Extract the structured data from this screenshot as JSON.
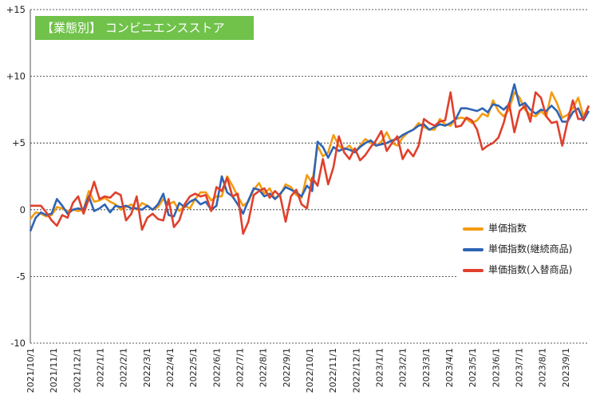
{
  "chart_data": {
    "type": "line",
    "title": "【業態別】 コンビニエンスストア",
    "xlabel": "",
    "ylabel": "",
    "ylim": [
      -10,
      15
    ],
    "yticks": [
      15,
      10,
      5,
      0,
      -5,
      -10
    ],
    "ytick_labels": [
      "+15",
      "+10",
      "+5",
      "0",
      "-5",
      "-10"
    ],
    "xtick_labels": [
      "2021/10/1",
      "2021/11/1",
      "2021/12/1",
      "2022/1/1",
      "2022/2/1",
      "2022/3/1",
      "2022/4/1",
      "2022/5/1",
      "2022/6/1",
      "2022/7/1",
      "2022/8/1",
      "2022/9/1",
      "2022/10/1",
      "2022/11/1",
      "2022/12/1",
      "2023/1/1",
      "2023/2/1",
      "2023/3/1",
      "2023/4/1",
      "2023/5/1",
      "2023/6/1",
      "2023/7/1",
      "2023/8/1",
      "2023/9/1"
    ],
    "grid": "horizontal",
    "legend_position": "right",
    "series": [
      {
        "name": "単価指数",
        "color": "#f39c12",
        "values": [
          -0.7,
          -0.2,
          -0.3,
          -0.5,
          -0.4,
          0.2,
          0.1,
          -0.1,
          0.0,
          -0.1,
          0.0,
          1.4,
          0.6,
          0.7,
          0.9,
          0.6,
          0.4,
          0.0,
          0.2,
          0.4,
          0.0,
          0.5,
          0.3,
          0.0,
          0.2,
          0.8,
          0.4,
          0.6,
          -0.1,
          0.3,
          0.1,
          0.8,
          1.3,
          1.3,
          0.7,
          1.0,
          1.0,
          2.5,
          1.8,
          1.0,
          0.3,
          0.6,
          1.5,
          2.0,
          1.2,
          1.6,
          0.8,
          1.1,
          1.9,
          1.7,
          1.1,
          0.9,
          2.6,
          2.0,
          4.8,
          4.0,
          4.3,
          5.6,
          4.8,
          4.5,
          4.8,
          4.3,
          4.8,
          5.3,
          5.0,
          4.8,
          5.1,
          5.8,
          5.0,
          4.8,
          5.4,
          5.8,
          6.0,
          6.5,
          6.2,
          6.0,
          6.0,
          6.8,
          6.4,
          6.3,
          6.8,
          6.9,
          6.8,
          6.5,
          6.7,
          7.2,
          7.0,
          8.2,
          7.4,
          7.0,
          7.5,
          8.8,
          8.4,
          7.5,
          7.1,
          7.0,
          7.4,
          7.0,
          8.8,
          8.0,
          6.9,
          7.1,
          7.6,
          8.4,
          7.0,
          7.8
        ]
      },
      {
        "name": "単価指数(継続商品)",
        "color": "#2e64b4",
        "values": [
          -1.6,
          -0.6,
          -0.2,
          -0.4,
          -0.3,
          0.8,
          0.3,
          -0.3,
          0.0,
          0.1,
          0.0,
          1.0,
          -0.1,
          0.1,
          0.4,
          -0.2,
          0.3,
          0.2,
          0.3,
          0.1,
          0.1,
          0.0,
          0.3,
          0.0,
          0.4,
          1.2,
          -0.4,
          -0.5,
          0.5,
          0.2,
          0.6,
          0.8,
          0.4,
          0.6,
          0.0,
          0.3,
          2.5,
          1.3,
          1.0,
          0.4,
          -0.3,
          0.7,
          1.6,
          1.5,
          1.0,
          1.2,
          0.8,
          1.2,
          1.7,
          1.5,
          1.3,
          1.0,
          1.8,
          1.4,
          5.1,
          4.7,
          3.9,
          4.7,
          4.4,
          4.6,
          4.5,
          4.3,
          4.7,
          5.0,
          5.2,
          4.8,
          4.9,
          5.0,
          5.2,
          5.3,
          5.6,
          5.8,
          6.0,
          6.3,
          6.4,
          6.0,
          6.2,
          6.4,
          6.3,
          6.5,
          6.8,
          7.6,
          7.6,
          7.5,
          7.4,
          7.6,
          7.3,
          7.9,
          7.8,
          7.5,
          7.9,
          9.4,
          7.8,
          8.0,
          7.5,
          7.2,
          7.5,
          7.4,
          7.8,
          7.4,
          6.6,
          6.6,
          7.3,
          7.6,
          6.7,
          7.4
        ]
      },
      {
        "name": "単価指数(入替商品)",
        "color": "#e0402c",
        "values": [
          0.3,
          0.3,
          0.3,
          -0.2,
          -0.8,
          -1.2,
          -0.4,
          -0.6,
          0.5,
          1.0,
          -0.3,
          0.8,
          2.1,
          0.8,
          1.0,
          0.9,
          1.3,
          1.1,
          -0.8,
          -0.3,
          1.0,
          -1.5,
          -0.6,
          -0.3,
          -0.7,
          -0.8,
          0.8,
          -1.3,
          -0.8,
          0.4,
          1.0,
          1.2,
          1.0,
          1.1,
          -0.1,
          1.7,
          1.4,
          2.4,
          1.0,
          1.2,
          -1.8,
          -0.9,
          1.1,
          1.4,
          1.6,
          0.9,
          1.4,
          1.0,
          -0.9,
          1.0,
          1.5,
          0.4,
          0.1,
          2.4,
          1.8,
          3.8,
          1.9,
          3.2,
          5.5,
          4.3,
          3.8,
          4.6,
          3.7,
          4.1,
          4.7,
          5.2,
          5.9,
          4.4,
          5.0,
          5.5,
          3.8,
          4.5,
          4.0,
          4.8,
          6.8,
          6.5,
          6.3,
          6.6,
          6.7,
          8.8,
          6.2,
          6.3,
          6.9,
          6.7,
          6.0,
          4.5,
          4.8,
          5.0,
          5.4,
          6.5,
          8.0,
          5.8,
          7.4,
          7.8,
          6.6,
          8.8,
          8.4,
          7.0,
          6.5,
          6.6,
          4.8,
          6.6,
          8.2,
          6.8,
          6.8,
          7.8
        ]
      }
    ]
  }
}
